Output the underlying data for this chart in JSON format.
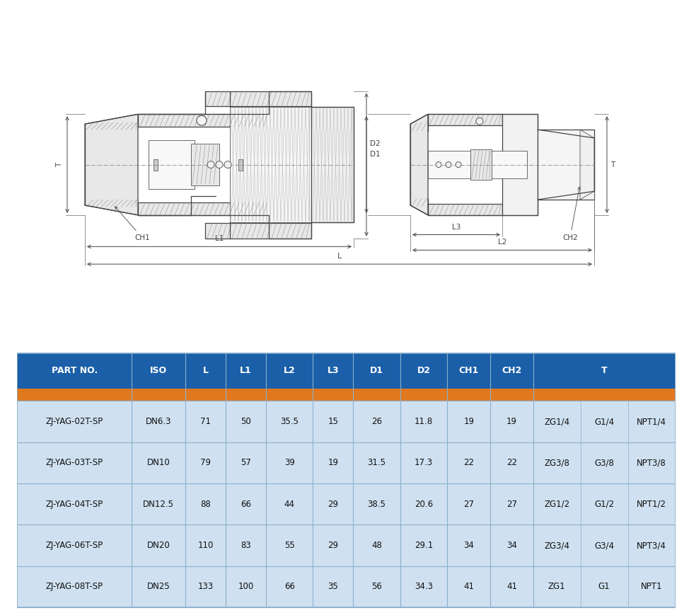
{
  "headers": [
    "PART NO.",
    "ISO",
    "L",
    "L1",
    "L2",
    "L3",
    "D1",
    "D2",
    "CH1",
    "CH2",
    "T"
  ],
  "header_color": "#1a5fa8",
  "header_text_color": "#ffffff",
  "orange_bar_color": "#e07820",
  "table_bg_color": "#cfe0f0",
  "table_border_color": "#8ab0cc",
  "rows": [
    [
      "ZJ-YAG-02T-SP",
      "DN6.3",
      "71",
      "50",
      "35.5",
      "15",
      "26",
      "11.8",
      "19",
      "19"
    ],
    [
      "ZJ-YAG-03T-SP",
      "DN10",
      "79",
      "57",
      "39",
      "19",
      "31.5",
      "17.3",
      "22",
      "22"
    ],
    [
      "ZJ-YAG-04T-SP",
      "DN12.5",
      "88",
      "66",
      "44",
      "29",
      "38.5",
      "20.6",
      "27",
      "27"
    ],
    [
      "ZJ-YAG-06T-SP",
      "DN20",
      "110",
      "83",
      "55",
      "29",
      "48",
      "29.1",
      "34",
      "34"
    ],
    [
      "ZJ-YAG-08T-SP",
      "DN25",
      "133",
      "100",
      "66",
      "35",
      "56",
      "34.3",
      "41",
      "41"
    ]
  ],
  "t_values": [
    [
      "ZG1/4",
      "G1/4",
      "NPT1/4"
    ],
    [
      "ZG3/8",
      "G3/8",
      "NPT3/8"
    ],
    [
      "ZG1/2",
      "G1/2",
      "NPT1/2"
    ],
    [
      "ZG3/4",
      "G3/4",
      "NPT3/4"
    ],
    [
      "ZG1",
      "G1",
      "NPT1"
    ]
  ],
  "col_widths": [
    1.65,
    0.78,
    0.58,
    0.58,
    0.68,
    0.58,
    0.68,
    0.68,
    0.62,
    0.62,
    2.05
  ],
  "bg_color": "#ffffff",
  "lc": "#444444",
  "lc_dim": "#555555",
  "hatch_color": "#888888"
}
